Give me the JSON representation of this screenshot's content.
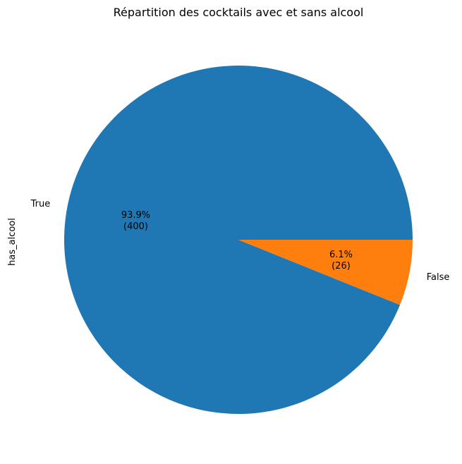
{
  "chart_data": {
    "type": "pie",
    "title": "Répartition des cocktails avec et sans alcool",
    "ylabel": "has_alcool",
    "slices": [
      {
        "label": "True",
        "value": 400,
        "percent_label": "93.9%",
        "count_label": "(400)",
        "color": "#1f77b4"
      },
      {
        "label": "False",
        "value": 26,
        "percent_label": "6.1%",
        "count_label": "(26)",
        "color": "#ff7f0e"
      }
    ]
  }
}
